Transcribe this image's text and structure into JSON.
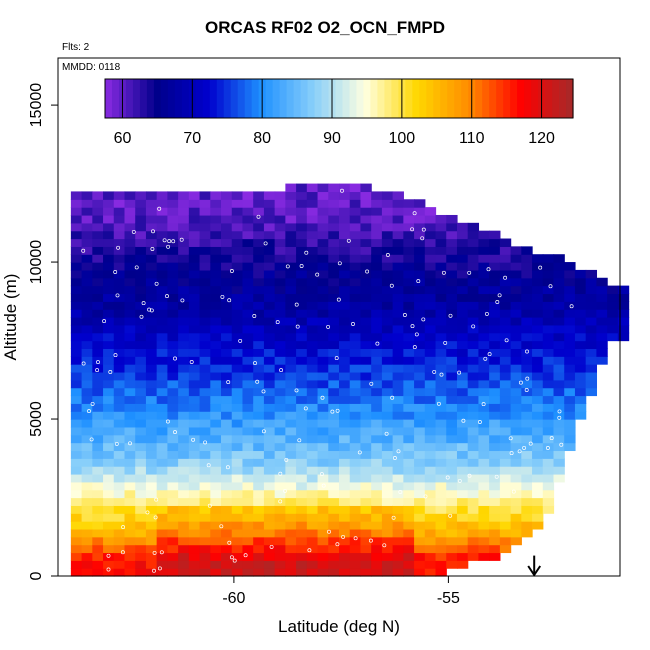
{
  "chart_data": {
    "type": "heatmap",
    "title": "ORCAS RF02 O2_OCN_FMPD",
    "annotations": {
      "flights": "Flts: 2",
      "date": "MMDD: 0118"
    },
    "xlabel": "Latitude (deg N)",
    "ylabel": "Altitude (m)",
    "xlim": [
      -64.1,
      -51.0
    ],
    "ylim": [
      0,
      16500
    ],
    "x_ticks": [
      -60,
      -55
    ],
    "y_ticks": [
      0,
      5000,
      10000,
      15000
    ],
    "colorbar": {
      "ticks": [
        60,
        70,
        80,
        90,
        100,
        110,
        120
      ],
      "range": [
        57.5,
        124.5
      ],
      "stops": [
        "#8a2be2",
        "#00008b",
        "#0000cd",
        "#1e90ff",
        "#87cefa",
        "#ffffe0",
        "#ffd700",
        "#ff8c00",
        "#ff0000",
        "#a52a2a"
      ],
      "placement": "top inside plot"
    },
    "profile": [
      {
        "alt": 500,
        "value": 117
      },
      {
        "alt": 1500,
        "value": 105
      },
      {
        "alt": 2500,
        "value": 97
      },
      {
        "alt": 3500,
        "value": 88
      },
      {
        "alt": 4500,
        "value": 83
      },
      {
        "alt": 5500,
        "value": 79
      },
      {
        "alt": 6500,
        "value": 75
      },
      {
        "alt": 7500,
        "value": 72
      },
      {
        "alt": 8500,
        "value": 68
      },
      {
        "alt": 9500,
        "value": 66
      },
      {
        "alt": 10500,
        "value": 63
      },
      {
        "alt": 11500,
        "value": 60
      }
    ],
    "domain_top_by_latitude": [
      {
        "lat": -63.8,
        "alt": 12100
      },
      {
        "lat": -59.5,
        "alt": 12200
      },
      {
        "lat": -57.3,
        "alt": 12400
      },
      {
        "lat": -56.0,
        "alt": 11900
      },
      {
        "lat": -54.8,
        "alt": 11200
      },
      {
        "lat": -53.2,
        "alt": 10300
      },
      {
        "lat": -52.3,
        "alt": 9900
      },
      {
        "lat": -51.3,
        "alt": 9200
      }
    ],
    "domain_bottom_right": [
      {
        "lat": -55.3,
        "alt": 0
      },
      {
        "lat": -53.8,
        "alt": 600
      },
      {
        "lat": -52.8,
        "alt": 1800
      },
      {
        "lat": -52.0,
        "alt": 5000
      },
      {
        "lat": -51.3,
        "alt": 7500
      }
    ],
    "domain_lat_range": [
      -63.8,
      -51.0
    ],
    "marker": {
      "lat": -53.0,
      "label": "arrow"
    }
  }
}
